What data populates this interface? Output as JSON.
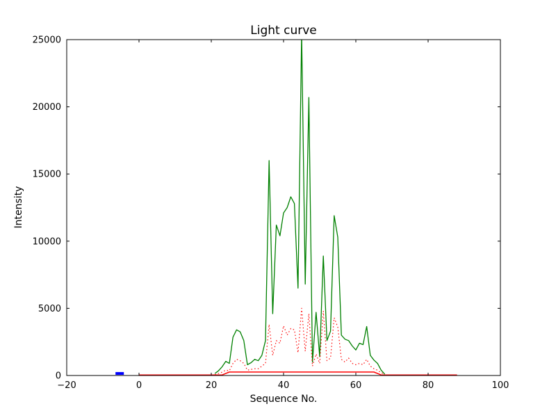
{
  "figure": {
    "background": "#ffffff",
    "frame_color": "#000000"
  },
  "chart_data": {
    "type": "line",
    "title": "Light curve",
    "xlabel": "Sequence No.",
    "ylabel": "Intensity",
    "xlim": [
      -20,
      100
    ],
    "ylim": [
      0,
      25000
    ],
    "xticks": [
      -20,
      0,
      20,
      40,
      60,
      80,
      100
    ],
    "xtick_labels": [
      "−20",
      "0",
      "20",
      "40",
      "60",
      "80",
      "100"
    ],
    "yticks": [
      0,
      5000,
      10000,
      15000,
      20000,
      25000
    ],
    "ytick_labels": [
      "0",
      "5000",
      "10000",
      "15000",
      "20000",
      "25000"
    ],
    "grid": false,
    "legend": null,
    "series": [
      {
        "name": "intensity-curve",
        "color": "#008000",
        "style": "solid",
        "width": 1.3,
        "x": [
          21,
          22,
          23,
          24,
          25,
          26,
          27,
          28,
          29,
          30,
          31,
          32,
          33,
          34,
          35,
          36,
          37,
          38,
          39,
          40,
          41,
          42,
          43,
          44,
          45,
          46,
          47,
          48,
          49,
          50,
          51,
          52,
          53,
          54,
          55,
          56,
          57,
          58,
          59,
          60,
          61,
          62,
          63,
          64,
          65,
          66,
          67,
          68
        ],
        "y": [
          150,
          350,
          650,
          1050,
          900,
          2850,
          3400,
          3250,
          2600,
          800,
          950,
          1200,
          1100,
          1500,
          2600,
          16000,
          4600,
          11200,
          10400,
          12100,
          12500,
          13300,
          12800,
          6500,
          25500,
          6800,
          20700,
          1000,
          4700,
          1400,
          8900,
          2600,
          3300,
          11900,
          10300,
          3000,
          2700,
          2600,
          2200,
          1900,
          2400,
          2300,
          3650,
          1500,
          1150,
          900,
          400,
          100
        ]
      },
      {
        "name": "secondary-intensity-dotted",
        "color": "#ff0000",
        "style": "dotted",
        "width": 1.2,
        "x": [
          21,
          22,
          23,
          24,
          25,
          26,
          27,
          28,
          29,
          30,
          31,
          32,
          33,
          34,
          35,
          36,
          37,
          38,
          39,
          40,
          41,
          42,
          43,
          44,
          45,
          46,
          47,
          48,
          49,
          50,
          51,
          52,
          53,
          54,
          55,
          56,
          57,
          58,
          59,
          60,
          61,
          62,
          63,
          64,
          65,
          66,
          67,
          68
        ],
        "y": [
          60,
          150,
          250,
          400,
          350,
          900,
          1200,
          1100,
          900,
          400,
          450,
          500,
          500,
          700,
          900,
          3800,
          1500,
          2600,
          2400,
          3700,
          3000,
          3500,
          3400,
          1700,
          5000,
          1800,
          4600,
          700,
          1600,
          900,
          4800,
          1100,
          1300,
          4300,
          3600,
          1200,
          1000,
          1300,
          900,
          800,
          900,
          800,
          1200,
          700,
          500,
          400,
          200,
          100
        ]
      },
      {
        "name": "baseline-window",
        "color": "#ff0000",
        "style": "solid",
        "width": 1.5,
        "x": [
          0,
          23,
          25,
          65,
          67,
          88
        ],
        "y": [
          40,
          40,
          260,
          260,
          40,
          40
        ]
      },
      {
        "name": "marker-segment",
        "color": "#0000ff",
        "style": "solid",
        "width": 4,
        "x": [
          -6.5,
          -4.2
        ],
        "y": [
          150,
          150
        ]
      }
    ]
  }
}
